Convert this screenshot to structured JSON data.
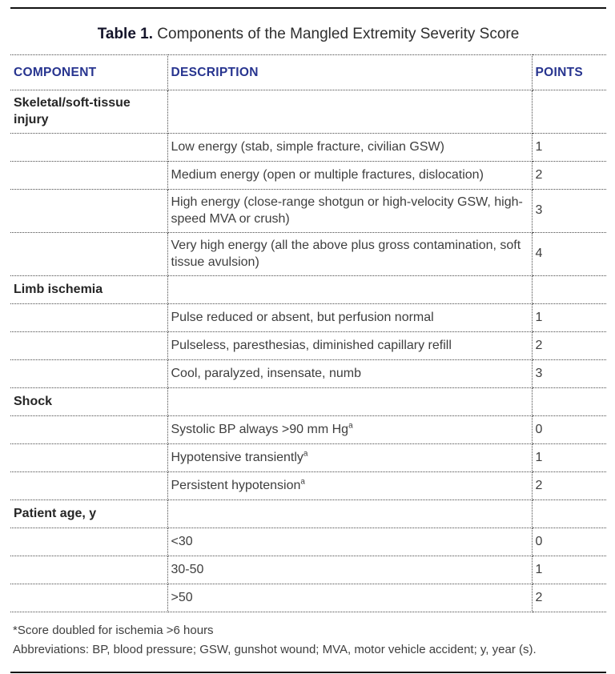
{
  "title": {
    "label": "Table 1.",
    "text": " Components of the Mangled Extremity Severity Score"
  },
  "columns": {
    "component": "COMPONENT",
    "description": "DESCRIPTION",
    "points": "POINTS"
  },
  "rows": [
    {
      "component": "Skeletal/soft-tissue injury",
      "description": "",
      "sup": "",
      "points": ""
    },
    {
      "component": "",
      "description": "Low energy (stab, simple fracture, civilian GSW)",
      "sup": "",
      "points": "1"
    },
    {
      "component": "",
      "description": "Medium energy (open or multiple fractures, dislocation)",
      "sup": "",
      "points": "2"
    },
    {
      "component": "",
      "description": "High energy (close-range shotgun or high-velocity GSW, high-speed MVA or crush)",
      "sup": "",
      "points": "3"
    },
    {
      "component": "",
      "description": "Very high energy (all the above plus gross contamination, soft tissue avulsion)",
      "sup": "",
      "points": "4"
    },
    {
      "component": "Limb ischemia",
      "description": "",
      "sup": "",
      "points": ""
    },
    {
      "component": "",
      "description": "Pulse reduced or absent, but perfusion normal",
      "sup": "",
      "points": "1"
    },
    {
      "component": "",
      "description": "Pulseless, paresthesias, diminished capillary refill",
      "sup": "",
      "points": "2"
    },
    {
      "component": "",
      "description": "Cool, paralyzed, insensate, numb",
      "sup": "",
      "points": "3"
    },
    {
      "component": "Shock",
      "description": "",
      "sup": "",
      "points": ""
    },
    {
      "component": "",
      "description": "Systolic BP always >90 mm Hg",
      "sup": "a",
      "points": "0"
    },
    {
      "component": "",
      "description": "Hypotensive transiently",
      "sup": "a",
      "points": "1"
    },
    {
      "component": "",
      "description": "Persistent hypotension",
      "sup": "a",
      "points": "2"
    },
    {
      "component": "Patient age, y",
      "description": "",
      "sup": "",
      "points": ""
    },
    {
      "component": "",
      "description": "<30",
      "sup": "",
      "points": "0"
    },
    {
      "component": "",
      "description": "30-50",
      "sup": "",
      "points": "1"
    },
    {
      "component": "",
      "description": ">50",
      "sup": "",
      "points": "2"
    }
  ],
  "footnotes": {
    "note1": "*Score doubled for ischemia >6 hours",
    "note2": "Abbreviations: BP, blood pressure; GSW, gunshot wound; MVA, motor vehicle accident; y, year (s)."
  },
  "colors": {
    "header_text": "#27348f",
    "body_text": "#3e3e3e",
    "section_text": "#262626",
    "rule_solid": "#121212",
    "rule_dotted": "#4a4a4a"
  }
}
